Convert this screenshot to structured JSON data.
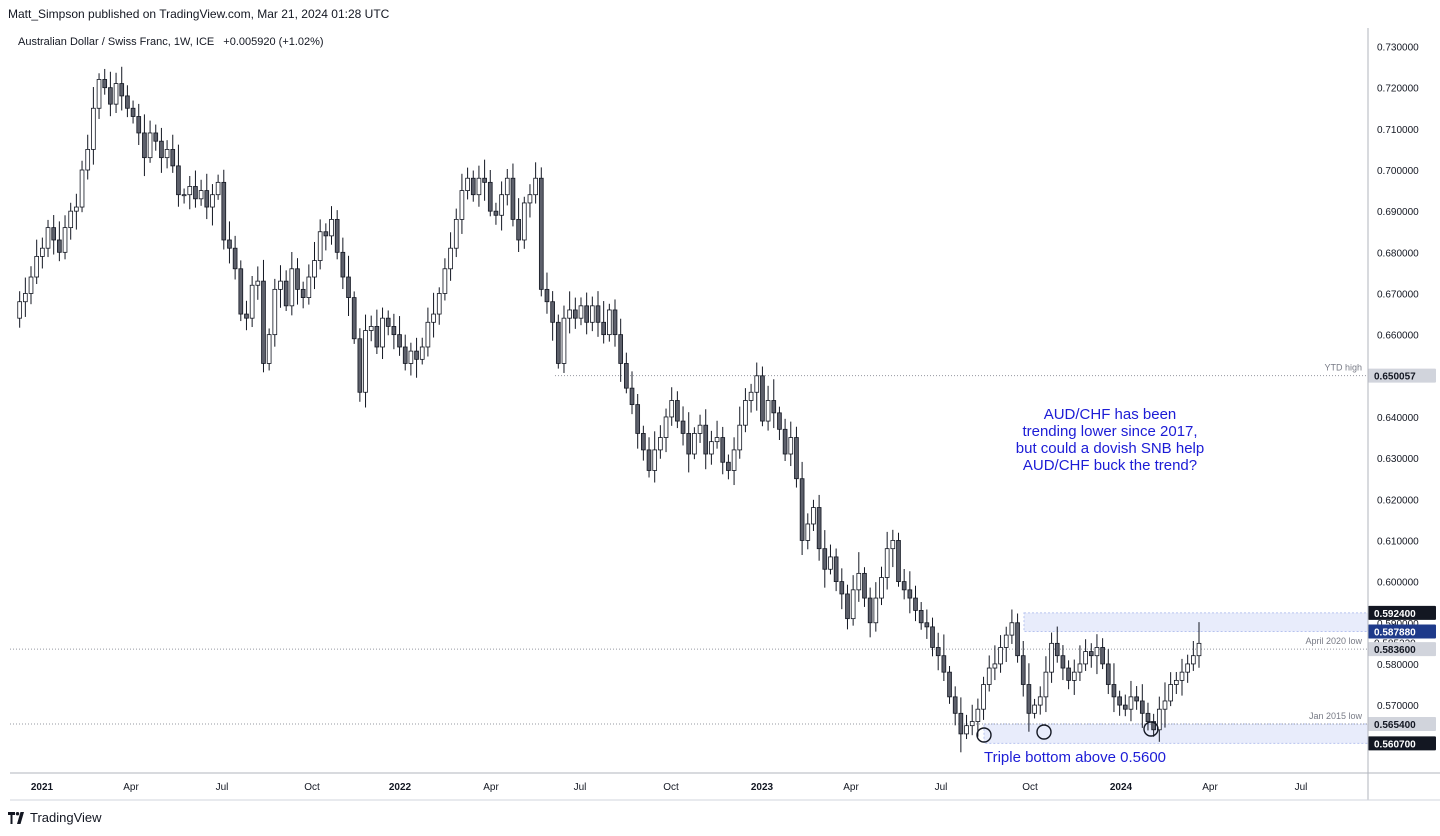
{
  "header": {
    "published": "Matt_Simpson published on TradingView.com, Mar 21, 2024 01:28 UTC"
  },
  "symbol": {
    "name": "Australian Dollar / Swiss Franc, 1W, ICE",
    "change": "+0.005920 (+1.02%)"
  },
  "footer": {
    "brand": "TradingView"
  },
  "colors": {
    "up": "#ffffff",
    "down": "#5d606b",
    "wick": "#131722",
    "annotation": "#1c1cd6",
    "zone": "#e8ecfb",
    "badge_dark": "#131722",
    "badge_blue": "#1e3a8a",
    "badge_grey": "#d1d4dc"
  },
  "annotations": {
    "comment": [
      "AUD/CHF has been",
      "trending lower since 2017,",
      "but could a dovish SNB help",
      "AUD/CHF buck the trend?"
    ],
    "triple_bottom": "Triple bottom above 0.5600"
  },
  "chart_data": {
    "type": "candlestick",
    "ylim": [
      0.5535,
      0.7345
    ],
    "y_ticks": [
      "0.730000",
      "0.720000",
      "0.710000",
      "0.700000",
      "0.690000",
      "0.680000",
      "0.670000",
      "0.660000",
      "0.650000",
      "0.640000",
      "0.630000",
      "0.620000",
      "0.610000",
      "0.600000",
      "0.590000",
      "0.580000",
      "0.570000",
      "0.560000"
    ],
    "x_labels": [
      "2021",
      "Apr",
      "Jul",
      "Oct",
      "2022",
      "Apr",
      "Jul",
      "Oct",
      "2023",
      "Apr",
      "Jul",
      "Oct",
      "2024",
      "Apr",
      "Jul"
    ],
    "price_labels": [
      {
        "text": "0.592400",
        "value": 0.5924,
        "style": "dark"
      },
      {
        "text": "0.587880",
        "value": 0.58788,
        "style": "blue"
      },
      {
        "text": "0.585220",
        "value": 0.58522,
        "style": "plain"
      },
      {
        "text": "0.583600",
        "value": 0.5836,
        "style": "grey"
      },
      {
        "text": "0.565400",
        "value": 0.5654,
        "style": "grey"
      },
      {
        "text": "0.560700",
        "value": 0.5607,
        "style": "dark"
      },
      {
        "text": "0.650057",
        "value": 0.650057,
        "style": "grey"
      }
    ],
    "levels": [
      {
        "label": "YTD high",
        "value": 0.650057
      },
      {
        "label": "April 2020 low",
        "value": 0.5836
      },
      {
        "label": "Jan 2015 low",
        "value": 0.5654
      }
    ],
    "zones": [
      [
        0.58788,
        0.5924
      ],
      [
        0.5607,
        0.5654
      ]
    ],
    "closes": [
      0.664,
      0.668,
      0.67,
      0.674,
      0.679,
      0.681,
      0.686,
      0.683,
      0.68,
      0.686,
      0.69,
      0.691,
      0.7,
      0.705,
      0.715,
      0.722,
      0.72,
      0.716,
      0.721,
      0.718,
      0.715,
      0.713,
      0.709,
      0.703,
      0.709,
      0.707,
      0.703,
      0.705,
      0.701,
      0.694,
      0.694,
      0.696,
      0.693,
      0.695,
      0.691,
      0.694,
      0.697,
      0.683,
      0.681,
      0.676,
      0.665,
      0.664,
      0.672,
      0.673,
      0.653,
      0.66,
      0.671,
      0.673,
      0.667,
      0.676,
      0.671,
      0.669,
      0.674,
      0.678,
      0.685,
      0.684,
      0.688,
      0.68,
      0.674,
      0.669,
      0.659,
      0.646,
      0.661,
      0.662,
      0.657,
      0.664,
      0.662,
      0.66,
      0.657,
      0.653,
      0.656,
      0.654,
      0.657,
      0.663,
      0.665,
      0.67,
      0.676,
      0.681,
      0.688,
      0.695,
      0.698,
      0.694,
      0.698,
      0.697,
      0.69,
      0.689,
      0.694,
      0.698,
      0.688,
      0.683,
      0.692,
      0.694,
      0.698,
      0.671,
      0.668,
      0.663,
      0.653,
      0.664,
      0.666,
      0.664,
      0.667,
      0.663,
      0.667,
      0.663,
      0.66,
      0.666,
      0.66,
      0.653,
      0.647,
      0.643,
      0.636,
      0.632,
      0.627,
      0.632,
      0.635,
      0.64,
      0.644,
      0.639,
      0.636,
      0.631,
      0.636,
      0.638,
      0.631,
      0.634,
      0.635,
      0.629,
      0.627,
      0.632,
      0.638,
      0.644,
      0.646,
      0.65,
      0.639,
      0.644,
      0.641,
      0.637,
      0.631,
      0.635,
      0.625,
      0.61,
      0.614,
      0.618,
      0.608,
      0.603,
      0.606,
      0.6,
      0.597,
      0.591,
      0.598,
      0.602,
      0.596,
      0.59,
      0.596,
      0.601,
      0.608,
      0.61,
      0.6,
      0.598,
      0.596,
      0.593,
      0.59,
      0.589,
      0.584,
      0.582,
      0.578,
      0.572,
      0.568,
      0.563,
      0.565,
      0.566,
      0.569,
      0.575,
      0.579,
      0.58,
      0.584,
      0.587,
      0.59,
      0.582,
      0.575,
      0.568,
      0.57,
      0.572,
      0.578,
      0.585,
      0.582,
      0.579,
      0.576,
      0.578,
      0.58,
      0.583,
      0.582,
      0.584,
      0.58,
      0.575,
      0.572,
      0.57,
      0.569,
      0.572,
      0.571,
      0.568,
      0.566,
      0.564,
      0.569,
      0.571,
      0.575,
      0.576,
      0.578,
      0.58,
      0.582,
      0.585
    ]
  }
}
